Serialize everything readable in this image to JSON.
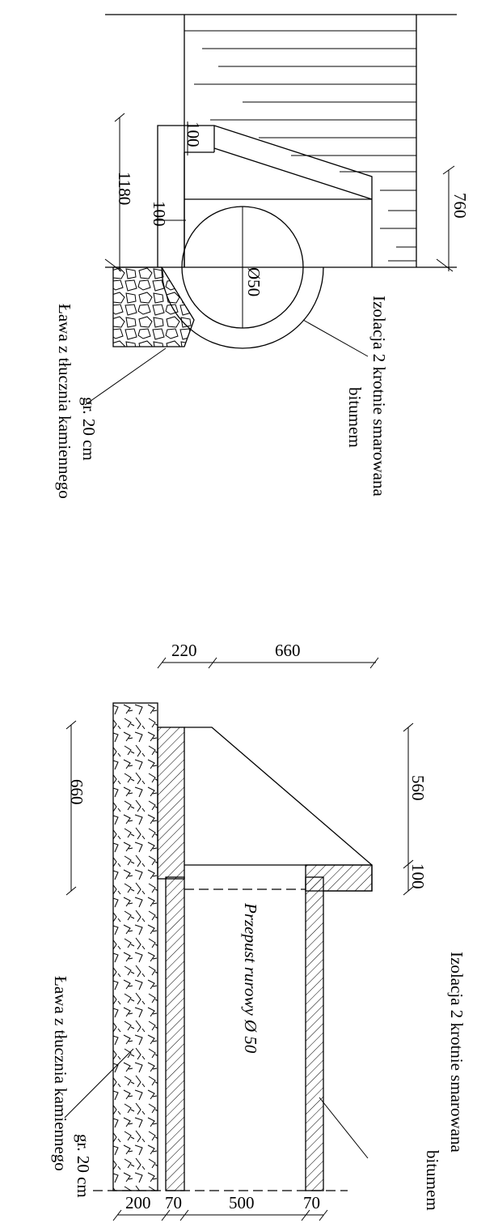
{
  "top_view": {
    "dimensions": {
      "height": "1180",
      "wall_top": "100",
      "wall_width": "100",
      "depth": "760",
      "pipe": "Ø50"
    },
    "insulation_label": [
      "Izolacja 2 krotnie smarowana",
      "bitumem"
    ],
    "bench_label": [
      "Ława z tłucznia kamiennego",
      "gr. 20 cm"
    ]
  },
  "section_view": {
    "dimensions_top": [
      "220",
      "660"
    ],
    "dimension_left": "660",
    "dimensions_right": [
      "560",
      "100"
    ],
    "dimensions_bottom": [
      "200",
      "70",
      "500",
      "70"
    ],
    "pipe_label": "Przepust rurowy Ø 50",
    "insulation_label": [
      "Izolacja 2 krotnie smarowana",
      "bitumem"
    ],
    "bench_label": [
      "Ława z tłucznia kamiennego",
      "gr. 20 cm"
    ]
  }
}
